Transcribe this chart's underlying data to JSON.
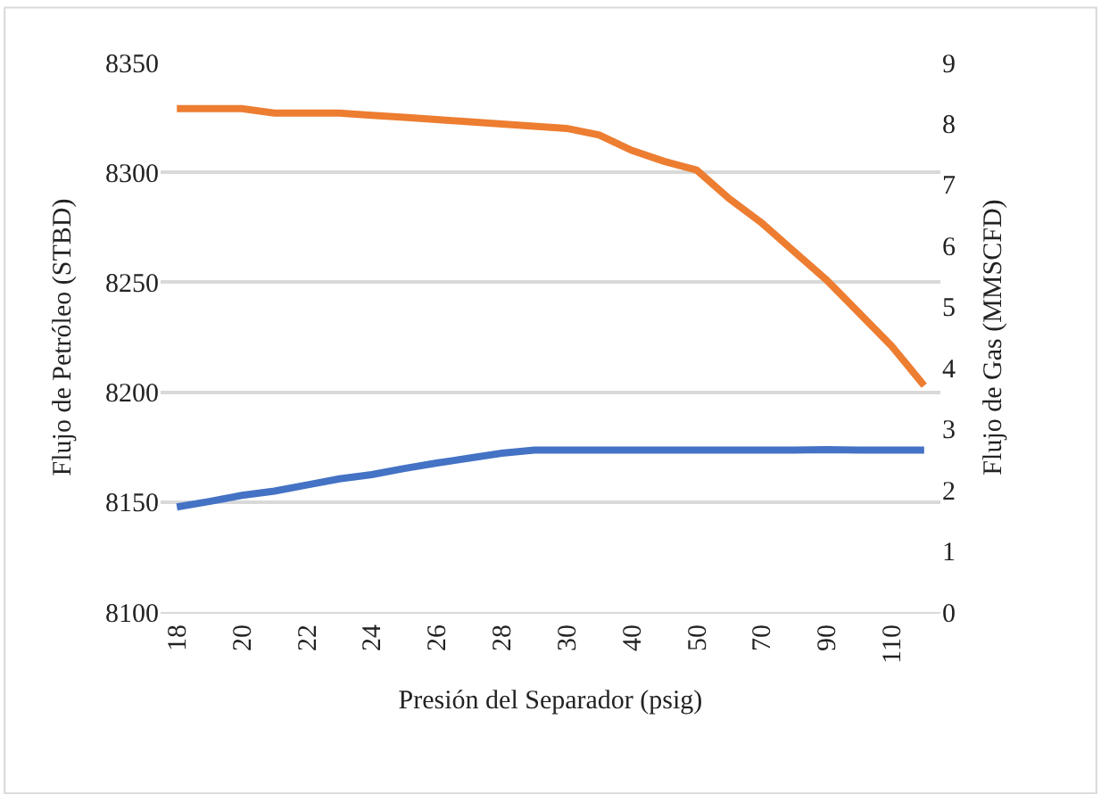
{
  "chart_data": {
    "type": "line",
    "xlabel": "Presión del Separador (psig)",
    "ylabel": "Flujo de Petróleo (STBD)",
    "y2label": "Flujo de Gas (MMSCFD)",
    "categories": [
      "18",
      null,
      "20",
      null,
      "22",
      null,
      "24",
      null,
      "26",
      null,
      "28",
      null,
      "30",
      null,
      "40",
      null,
      "50",
      null,
      "70",
      null,
      "90",
      null,
      "110",
      null
    ],
    "series": [
      {
        "color": "#ed7d31",
        "values": [
          8329,
          8329,
          8329,
          8327,
          8327,
          8327,
          8326,
          8325,
          8324,
          8323,
          8322,
          8321,
          8320,
          8317,
          8310,
          8305,
          8301,
          8288,
          8277,
          8264,
          8251,
          8236,
          8221,
          8203
        ]
      },
      {
        "color": "#4472c4",
        "axis": "y2",
        "values": [
          1.72,
          1.81,
          1.91,
          1.98,
          2.08,
          2.18,
          2.25,
          2.35,
          2.44,
          2.52,
          2.6,
          2.65,
          2.65,
          2.65,
          2.65,
          2.65,
          2.65,
          2.65,
          2.65,
          2.65,
          2.66,
          2.65,
          2.65,
          2.65
        ]
      }
    ],
    "ylim": [
      8100,
      8350
    ],
    "yticks": [
      8100,
      8150,
      8200,
      8250,
      8300,
      8350
    ],
    "y2lim": [
      0,
      9
    ],
    "y2ticks": [
      0,
      1,
      2,
      3,
      4,
      5,
      6,
      7,
      8,
      9
    ],
    "grid": "y",
    "marker": "none",
    "line_style": "solid"
  }
}
